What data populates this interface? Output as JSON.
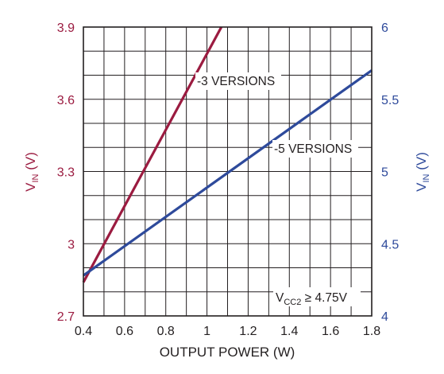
{
  "chart_data": {
    "type": "line",
    "xlabel": "OUTPUT POWER (W)",
    "xlim": [
      0.4,
      1.8
    ],
    "x_ticks": [
      "0.4",
      "0.6",
      "0.8",
      "1",
      "1.2",
      "1.4",
      "1.6",
      "1.8"
    ],
    "x_tick_values": [
      0.4,
      0.6,
      0.8,
      1.0,
      1.2,
      1.4,
      1.6,
      1.8
    ],
    "left_axis": {
      "label_main": "V",
      "label_sub": "IN",
      "label_unit": " (V)",
      "ylim": [
        2.7,
        3.9
      ],
      "ticks": [
        "2.7",
        "3",
        "3.3",
        "3.6",
        "3.9"
      ],
      "tick_values": [
        2.7,
        3.0,
        3.3,
        3.6,
        3.9
      ],
      "color": "#9b1b40"
    },
    "right_axis": {
      "label_main": "V",
      "label_sub": "IN",
      "label_unit": " (V)",
      "ylim": [
        4.0,
        6.0
      ],
      "ticks": [
        "4",
        "4.5",
        "5",
        "5.5",
        "6"
      ],
      "tick_values": [
        4.0,
        4.5,
        5.0,
        5.5,
        6.0
      ],
      "color": "#2e4a9b"
    },
    "grid": true,
    "series": [
      {
        "name": "-3 VERSIONS",
        "axis": "left",
        "color": "#9b1b40",
        "x": [
          0.4,
          1.07
        ],
        "y": [
          2.84,
          3.9
        ]
      },
      {
        "name": "-5 VERSIONS",
        "axis": "right",
        "color": "#2e4a9b",
        "x": [
          0.4,
          1.8
        ],
        "y": [
          4.28,
          5.7
        ]
      }
    ],
    "annotation": {
      "main": "V",
      "sub": "CC2",
      "rest": " ≥ 4.75V"
    }
  }
}
